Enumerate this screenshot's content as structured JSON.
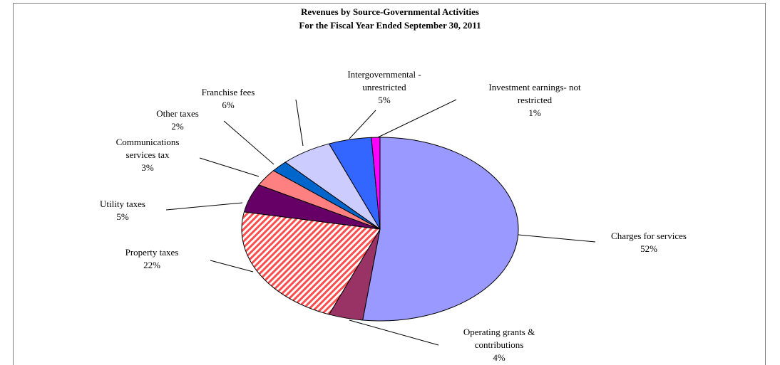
{
  "chart_data": {
    "type": "pie",
    "title": "Revenues by Source-Governmental Activities",
    "subtitle": "For the Fiscal Year Ended September 30, 2011",
    "categories": [
      "Charges for services",
      "Operating grants & contributions",
      "Property taxes",
      "Utility taxes",
      "Communications services tax",
      "Other taxes",
      "Franchise fees",
      "Intergovernmental - unrestricted",
      "Investment earnings- not restricted"
    ],
    "values": [
      52,
      4,
      22,
      5,
      3,
      2,
      6,
      5,
      1
    ],
    "value_labels": [
      "52%",
      "4%",
      "22%",
      "5%",
      "3%",
      "2%",
      "6%",
      "5%",
      "1%"
    ],
    "colors": [
      "#9999ff",
      "#993366",
      "#ff4d4d",
      "#660066",
      "#ff8080",
      "#0066cc",
      "#ccccff",
      "#3366ff",
      "#ff00ff"
    ],
    "hatched": [
      2
    ]
  }
}
